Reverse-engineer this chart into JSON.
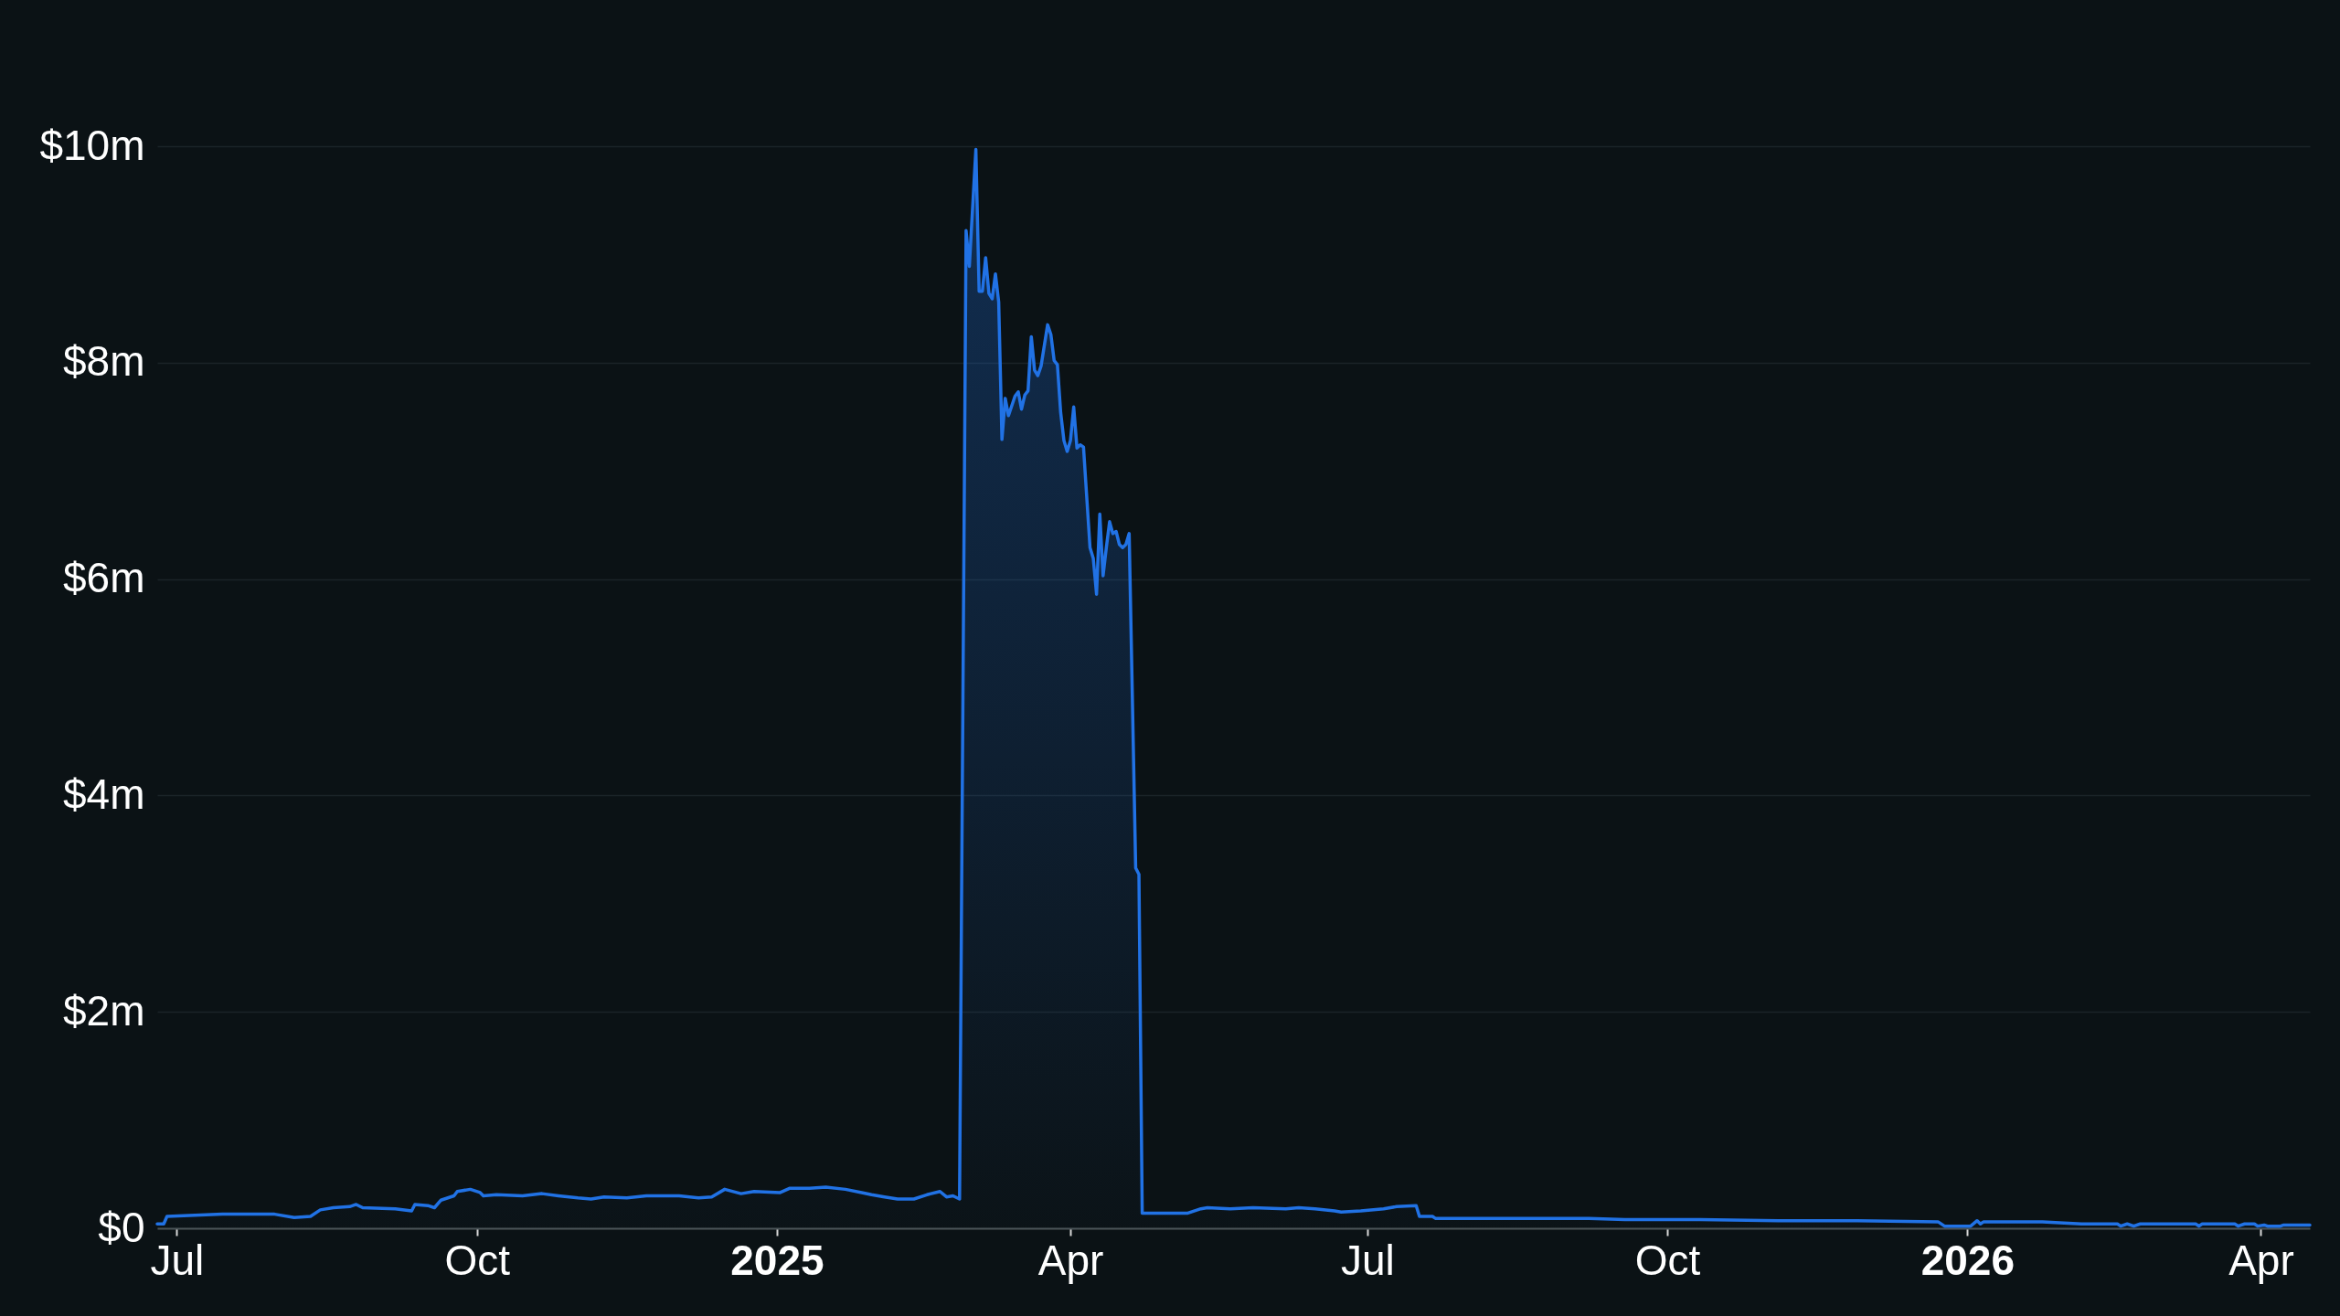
{
  "chart_data": {
    "type": "area",
    "x": [
      "2024-06-25",
      "2024-06-27",
      "2024-06-28",
      "2024-07-15",
      "2024-07-31",
      "2024-08-06",
      "2024-08-11",
      "2024-08-14",
      "2024-08-18",
      "2024-08-23",
      "2024-08-25",
      "2024-08-27",
      "2024-09-06",
      "2024-09-11",
      "2024-09-12",
      "2024-09-16",
      "2024-09-18",
      "2024-09-20",
      "2024-09-24",
      "2024-09-25",
      "2024-09-29",
      "2024-10-02",
      "2024-10-03",
      "2024-10-07",
      "2024-10-15",
      "2024-10-21",
      "2024-10-26",
      "2024-11-01",
      "2024-11-05",
      "2024-11-09",
      "2024-11-16",
      "2024-11-22",
      "2024-12-02",
      "2024-12-08",
      "2024-12-12",
      "2024-12-16",
      "2024-12-21",
      "2024-12-25",
      "2025-01-02",
      "2025-01-05",
      "2025-01-11",
      "2025-01-16",
      "2025-01-22",
      "2025-01-27",
      "2025-01-30",
      "2025-02-03",
      "2025-02-07",
      "2025-02-12",
      "2025-02-16",
      "2025-02-20",
      "2025-02-22",
      "2025-02-24",
      "2025-02-26",
      "2025-02-28",
      "2025-03-01",
      "2025-03-03",
      "2025-03-04",
      "2025-03-05",
      "2025-03-06",
      "2025-03-07",
      "2025-03-08",
      "2025-03-09",
      "2025-03-10",
      "2025-03-11",
      "2025-03-12",
      "2025-03-13",
      "2025-03-15",
      "2025-03-16",
      "2025-03-17",
      "2025-03-18",
      "2025-03-19",
      "2025-03-20",
      "2025-03-21",
      "2025-03-22",
      "2025-03-23",
      "2025-03-25",
      "2025-03-26",
      "2025-03-27",
      "2025-03-28",
      "2025-03-29",
      "2025-03-30",
      "2025-03-31",
      "2025-04-01",
      "2025-04-02",
      "2025-04-03",
      "2025-04-04",
      "2025-04-05",
      "2025-04-07",
      "2025-04-08",
      "2025-04-09",
      "2025-04-10",
      "2025-04-11",
      "2025-04-12",
      "2025-04-13",
      "2025-04-14",
      "2025-04-15",
      "2025-04-16",
      "2025-04-17",
      "2025-04-18",
      "2025-04-19",
      "2025-04-21",
      "2025-04-22",
      "2025-04-23",
      "2025-05-07",
      "2025-05-11",
      "2025-05-13",
      "2025-05-20",
      "2025-05-27",
      "2025-06-06",
      "2025-06-10",
      "2025-06-15",
      "2025-06-21",
      "2025-06-23",
      "2025-06-29",
      "2025-07-06",
      "2025-07-10",
      "2025-07-16",
      "2025-07-17",
      "2025-07-21",
      "2025-07-22",
      "2025-08-14",
      "2025-09-07",
      "2025-09-18",
      "2025-10-11",
      "2025-11-04",
      "2025-11-27",
      "2025-12-23",
      "2025-12-25",
      "2026-01-02",
      "2026-01-04",
      "2026-01-05",
      "2026-01-06",
      "2026-01-24",
      "2026-02-05",
      "2026-02-16",
      "2026-02-17",
      "2026-02-19",
      "2026-02-21",
      "2026-02-23",
      "2026-03-12",
      "2026-03-13",
      "2026-03-14",
      "2026-03-24",
      "2026-03-25",
      "2026-03-27",
      "2026-03-30",
      "2026-03-31",
      "2026-04-02",
      "2026-04-03",
      "2026-04-07",
      "2026-04-08",
      "2026-04-16"
    ],
    "series": [
      {
        "color": "#2172e5",
        "values": [
          0.04,
          0.04,
          0.11,
          0.13,
          0.13,
          0.1,
          0.11,
          0.17,
          0.19,
          0.2,
          0.22,
          0.19,
          0.18,
          0.16,
          0.22,
          0.21,
          0.19,
          0.26,
          0.3,
          0.34,
          0.36,
          0.33,
          0.3,
          0.31,
          0.3,
          0.32,
          0.3,
          0.28,
          0.27,
          0.29,
          0.28,
          0.3,
          0.3,
          0.28,
          0.29,
          0.36,
          0.32,
          0.34,
          0.33,
          0.37,
          0.37,
          0.38,
          0.36,
          0.33,
          0.31,
          0.29,
          0.27,
          0.27,
          0.31,
          0.34,
          0.29,
          0.3,
          0.27,
          9.22,
          8.89,
          9.97,
          8.66,
          8.66,
          8.97,
          8.64,
          8.59,
          8.82,
          8.56,
          7.29,
          7.67,
          7.51,
          7.69,
          7.73,
          7.57,
          7.7,
          7.74,
          8.24,
          7.93,
          7.88,
          7.97,
          8.35,
          8.26,
          8.02,
          7.98,
          7.54,
          7.28,
          7.18,
          7.28,
          7.59,
          7.21,
          7.24,
          7.22,
          6.29,
          6.19,
          5.86,
          6.6,
          6.03,
          6.29,
          6.53,
          6.42,
          6.44,
          6.32,
          6.29,
          6.32,
          6.42,
          3.33,
          3.27,
          0.14,
          0.14,
          0.18,
          0.19,
          0.18,
          0.19,
          0.18,
          0.19,
          0.18,
          0.16,
          0.15,
          0.16,
          0.18,
          0.2,
          0.21,
          0.11,
          0.11,
          0.09,
          0.09,
          0.09,
          0.08,
          0.08,
          0.07,
          0.07,
          0.06,
          0.02,
          0.02,
          0.07,
          0.04,
          0.06,
          0.06,
          0.04,
          0.04,
          0.02,
          0.04,
          0.02,
          0.04,
          0.04,
          0.02,
          0.04,
          0.04,
          0.02,
          0.04,
          0.04,
          0.02,
          0.03,
          0.02,
          0.02,
          0.03,
          0.03
        ]
      }
    ],
    "xlim": [
      "2024-06-25",
      "2026-04-16"
    ],
    "xticks": [
      {
        "value": "2024-07-01",
        "label": "Jul"
      },
      {
        "value": "2024-10-01",
        "label": "Oct"
      },
      {
        "value": "2025-01-01",
        "label": "2025"
      },
      {
        "value": "2025-04-01",
        "label": "Apr"
      },
      {
        "value": "2025-07-01",
        "label": "Jul"
      },
      {
        "value": "2025-10-01",
        "label": "Oct"
      },
      {
        "value": "2026-01-01",
        "label": "2026"
      },
      {
        "value": "2026-04-01",
        "label": "Apr"
      }
    ],
    "ylim": [
      0,
      10
    ],
    "yticks": [
      {
        "value": 0,
        "label": "$0"
      },
      {
        "value": 2,
        "label": "$2m"
      },
      {
        "value": 4,
        "label": "$4m"
      },
      {
        "value": 6,
        "label": "$6m"
      },
      {
        "value": 8,
        "label": "$8m"
      },
      {
        "value": 10,
        "label": "$10m"
      }
    ],
    "grid": "y"
  }
}
